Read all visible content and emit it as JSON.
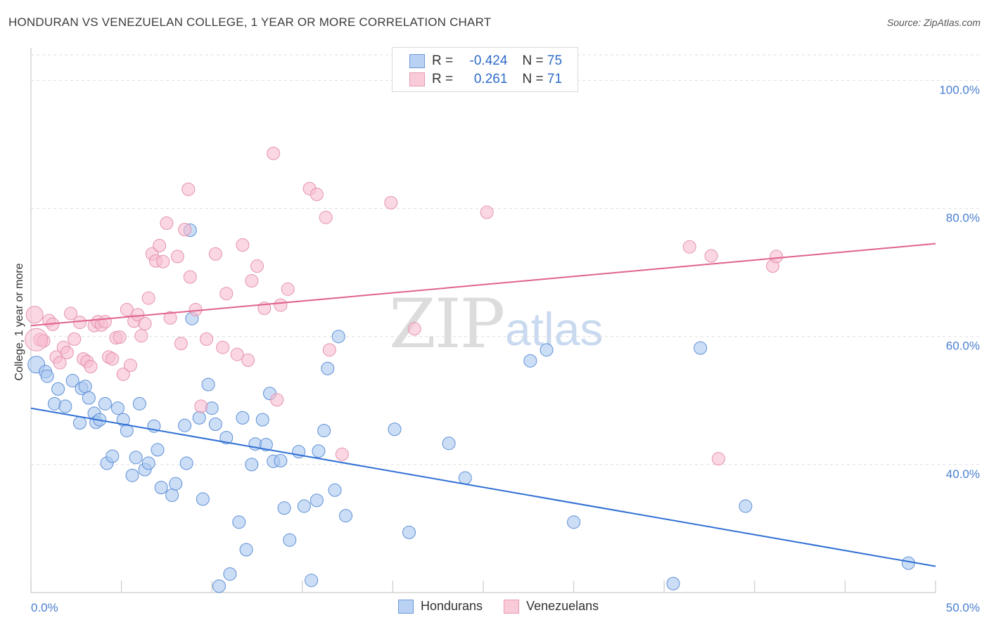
{
  "title": "HONDURAN VS VENEZUELAN COLLEGE, 1 YEAR OR MORE CORRELATION CHART",
  "source": "Source: ZipAtlas.com",
  "watermark": {
    "zip": "ZIP",
    "atlas": "atlas"
  },
  "legend": {
    "rows": [
      {
        "r_label": "R =",
        "r_value": "-0.424",
        "n_label": "N =",
        "n_value": "75"
      },
      {
        "r_label": "R =",
        "r_value": "0.261",
        "n_label": "N =",
        "n_value": "71"
      }
    ]
  },
  "bottom_legend": [
    "Hondurans",
    "Venezuelans"
  ],
  "colors": {
    "blue_fill": "#aac8f0",
    "blue_stroke": "#5d8fd6",
    "blue_line": "#2f6fd4",
    "pink_fill": "#f7bcd0",
    "pink_stroke": "#e593ae",
    "pink_line": "#e0628e",
    "grid": "#dddddd",
    "tick_text": "#4a7fd0"
  },
  "chart_data": {
    "type": "scatter",
    "title": "HONDURAN VS VENEZUELAN COLLEGE, 1 YEAR OR MORE CORRELATION CHART",
    "xlabel": "",
    "ylabel": "College, 1 year or more",
    "xlim": [
      0,
      50
    ],
    "ylim": [
      20,
      104
    ],
    "x_tick_labels": [
      "0.0%",
      "50.0%"
    ],
    "y_ticks": [
      40,
      60,
      80,
      100
    ],
    "y_tick_labels": [
      "40.0%",
      "60.0%",
      "80.0%",
      "100.0%"
    ],
    "series": [
      {
        "name": "Hondurans",
        "r": -0.424,
        "n": 75,
        "trend": [
          [
            0,
            48.8
          ],
          [
            50,
            24.1
          ]
        ],
        "points": [
          [
            0.3,
            55.6
          ],
          [
            0.8,
            54.5
          ],
          [
            0.9,
            53.8
          ],
          [
            1.3,
            49.5
          ],
          [
            1.5,
            51.8
          ],
          [
            1.9,
            49.1
          ],
          [
            2.3,
            53.1
          ],
          [
            2.7,
            46.5
          ],
          [
            2.8,
            51.9
          ],
          [
            3.0,
            52.2
          ],
          [
            3.2,
            50.4
          ],
          [
            3.5,
            48.0
          ],
          [
            3.6,
            46.6
          ],
          [
            3.8,
            47.0
          ],
          [
            4.1,
            49.5
          ],
          [
            4.2,
            40.2
          ],
          [
            4.5,
            41.3
          ],
          [
            4.8,
            48.8
          ],
          [
            5.1,
            47.0
          ],
          [
            5.3,
            45.3
          ],
          [
            5.6,
            38.3
          ],
          [
            5.8,
            41.1
          ],
          [
            6.0,
            49.5
          ],
          [
            6.3,
            39.2
          ],
          [
            6.5,
            40.2
          ],
          [
            6.8,
            46.0
          ],
          [
            7.0,
            42.3
          ],
          [
            7.2,
            36.4
          ],
          [
            7.8,
            35.2
          ],
          [
            8.0,
            37.0
          ],
          [
            8.5,
            46.1
          ],
          [
            8.6,
            40.2
          ],
          [
            8.8,
            76.6
          ],
          [
            8.9,
            62.8
          ],
          [
            9.3,
            47.3
          ],
          [
            9.5,
            34.6
          ],
          [
            9.8,
            52.5
          ],
          [
            10.0,
            48.8
          ],
          [
            10.2,
            46.3
          ],
          [
            10.4,
            21.0
          ],
          [
            10.8,
            44.2
          ],
          [
            11.0,
            22.9
          ],
          [
            11.5,
            31.0
          ],
          [
            11.7,
            47.3
          ],
          [
            11.9,
            26.7
          ],
          [
            12.2,
            40.0
          ],
          [
            12.4,
            43.2
          ],
          [
            12.8,
            47.0
          ],
          [
            13.0,
            43.1
          ],
          [
            13.2,
            51.1
          ],
          [
            13.4,
            40.5
          ],
          [
            13.8,
            40.6
          ],
          [
            14.0,
            33.2
          ],
          [
            14.3,
            28.2
          ],
          [
            14.8,
            42.0
          ],
          [
            15.1,
            33.5
          ],
          [
            15.5,
            21.9
          ],
          [
            15.8,
            34.4
          ],
          [
            15.9,
            42.1
          ],
          [
            16.2,
            45.3
          ],
          [
            16.4,
            55.0
          ],
          [
            16.8,
            36.0
          ],
          [
            17.0,
            60.0
          ],
          [
            17.4,
            32.0
          ],
          [
            20.1,
            45.5
          ],
          [
            20.9,
            29.4
          ],
          [
            23.1,
            43.3
          ],
          [
            24.0,
            37.9
          ],
          [
            27.6,
            56.2
          ],
          [
            28.5,
            57.9
          ],
          [
            30.0,
            31.0
          ],
          [
            35.5,
            21.4
          ],
          [
            37.0,
            58.2
          ],
          [
            39.5,
            33.5
          ],
          [
            48.5,
            24.6
          ]
        ]
      },
      {
        "name": "Venezuelans",
        "r": 0.261,
        "n": 71,
        "trend": [
          [
            0,
            61.7
          ],
          [
            50,
            74.5
          ]
        ],
        "points": [
          [
            0.2,
            63.4
          ],
          [
            0.5,
            59.5
          ],
          [
            0.7,
            59.3
          ],
          [
            1.0,
            62.5
          ],
          [
            1.2,
            61.9
          ],
          [
            1.4,
            56.8
          ],
          [
            1.6,
            55.9
          ],
          [
            1.8,
            58.3
          ],
          [
            2.0,
            57.5
          ],
          [
            2.2,
            63.6
          ],
          [
            2.4,
            59.6
          ],
          [
            2.7,
            62.2
          ],
          [
            2.9,
            56.5
          ],
          [
            3.1,
            56.1
          ],
          [
            3.3,
            55.3
          ],
          [
            3.5,
            61.7
          ],
          [
            3.7,
            62.3
          ],
          [
            3.9,
            61.8
          ],
          [
            4.1,
            62.3
          ],
          [
            4.3,
            56.8
          ],
          [
            4.5,
            56.5
          ],
          [
            4.7,
            59.8
          ],
          [
            4.9,
            59.9
          ],
          [
            5.1,
            54.1
          ],
          [
            5.3,
            64.2
          ],
          [
            5.5,
            55.5
          ],
          [
            5.7,
            62.4
          ],
          [
            5.9,
            63.4
          ],
          [
            6.1,
            60.1
          ],
          [
            6.3,
            62.0
          ],
          [
            6.5,
            66.0
          ],
          [
            6.7,
            72.9
          ],
          [
            6.9,
            71.8
          ],
          [
            7.1,
            74.2
          ],
          [
            7.3,
            71.7
          ],
          [
            7.5,
            77.7
          ],
          [
            7.7,
            62.9
          ],
          [
            8.1,
            72.5
          ],
          [
            8.3,
            58.9
          ],
          [
            8.5,
            76.7
          ],
          [
            8.7,
            83.0
          ],
          [
            8.8,
            69.3
          ],
          [
            9.1,
            64.2
          ],
          [
            9.4,
            49.1
          ],
          [
            9.7,
            59.6
          ],
          [
            10.2,
            72.9
          ],
          [
            10.6,
            58.3
          ],
          [
            10.8,
            66.7
          ],
          [
            11.4,
            57.2
          ],
          [
            11.7,
            74.3
          ],
          [
            12.0,
            56.3
          ],
          [
            12.2,
            68.7
          ],
          [
            12.5,
            71.0
          ],
          [
            12.9,
            64.4
          ],
          [
            13.4,
            88.6
          ],
          [
            13.6,
            50.1
          ],
          [
            13.8,
            64.9
          ],
          [
            14.2,
            67.4
          ],
          [
            15.4,
            83.1
          ],
          [
            15.8,
            82.2
          ],
          [
            16.3,
            78.6
          ],
          [
            16.5,
            57.9
          ],
          [
            17.2,
            41.6
          ],
          [
            19.9,
            80.9
          ],
          [
            21.2,
            61.2
          ],
          [
            25.2,
            79.4
          ],
          [
            36.4,
            74.0
          ],
          [
            37.6,
            72.6
          ],
          [
            38.0,
            40.9
          ],
          [
            41.0,
            71.0
          ],
          [
            41.2,
            72.5
          ]
        ]
      }
    ]
  }
}
